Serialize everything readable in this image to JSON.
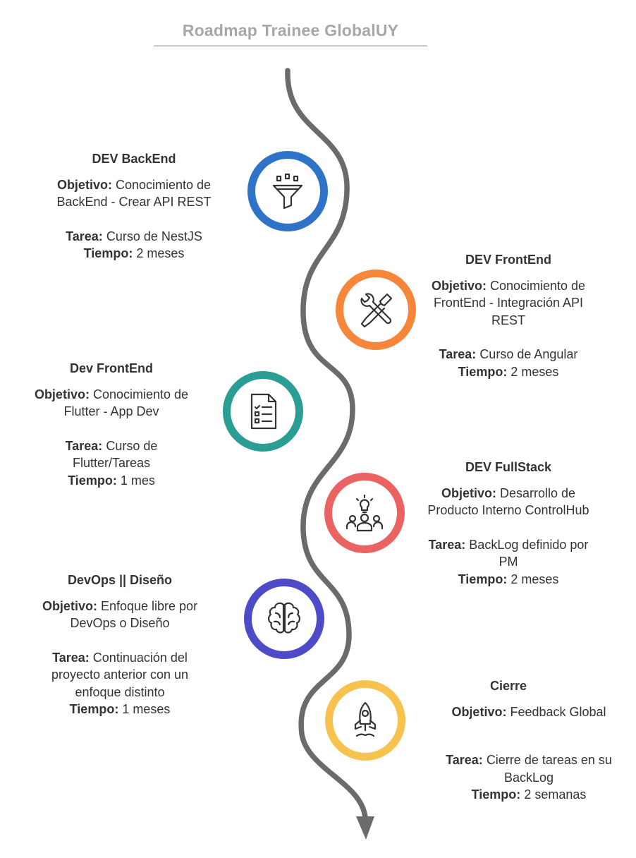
{
  "title": "Roadmap Trainee GlobalUY",
  "colors": {
    "road": "#6b6b6b",
    "backend": "#2f73c8",
    "frontend": "#f5863a",
    "flutter": "#2a9d94",
    "fullstack": "#ea6262",
    "devops": "#4e4bc9",
    "cierre": "#f8c24e"
  },
  "stages": [
    {
      "heading": "DEV BackEnd",
      "icon": "funnel-icon",
      "objetivo_label": "Objetivo:",
      "objetivo_lines": [
        "Conocimiento de",
        "BackEnd - Crear API REST"
      ],
      "tarea_label": "Tarea:",
      "tarea_lines": [
        "Curso de NestJS"
      ],
      "tiempo_label": "Tiempo:",
      "tiempo": "2 meses"
    },
    {
      "heading": "DEV FrontEnd",
      "icon": "tools-icon",
      "objetivo_label": "Objetivo:",
      "objetivo_lines": [
        "Conocimiento de",
        "FrontEnd - Integración API",
        "REST"
      ],
      "tarea_label": "Tarea:",
      "tarea_lines": [
        "Curso de Angular"
      ],
      "tiempo_label": "Tiempo:",
      "tiempo": "2 meses"
    },
    {
      "heading": "Dev FrontEnd",
      "icon": "checklist-icon",
      "objetivo_label": "Objetivo:",
      "objetivo_lines": [
        "Conocimiento de",
        "Flutter - App Dev"
      ],
      "tarea_label": "Tarea:",
      "tarea_lines": [
        "Curso de",
        "Flutter/Tareas"
      ],
      "tiempo_label": "Tiempo:",
      "tiempo": "1 mes"
    },
    {
      "heading": "DEV FullStack",
      "icon": "team-idea-icon",
      "objetivo_label": "Objetivo:",
      "objetivo_lines": [
        "Desarrollo de",
        "Producto Interno ControlHub"
      ],
      "tarea_label": "Tarea:",
      "tarea_lines": [
        "BackLog definido por",
        "PM"
      ],
      "tiempo_label": "Tiempo:",
      "tiempo": "2 meses"
    },
    {
      "heading": "DevOps || Diseño",
      "icon": "brain-icon",
      "objetivo_label": "Objetivo:",
      "objetivo_lines": [
        "Enfoque libre por",
        "DevOps o Diseño"
      ],
      "tarea_label": "Tarea:",
      "tarea_lines": [
        "Continuación del",
        "proyecto anterior con un",
        "enfoque distinto"
      ],
      "tiempo_label": "Tiempo:",
      "tiempo": "1 meses"
    },
    {
      "heading": "Cierre",
      "icon": "rocket-icon",
      "objetivo_label": "Objetivo:",
      "objetivo_lines": [
        "Feedback Global"
      ],
      "tarea_label": "Tarea:",
      "tarea_lines": [
        "Cierre de tareas en su",
        "BackLog"
      ],
      "tiempo_label": "Tiempo:",
      "tiempo": "2 semanas"
    }
  ]
}
